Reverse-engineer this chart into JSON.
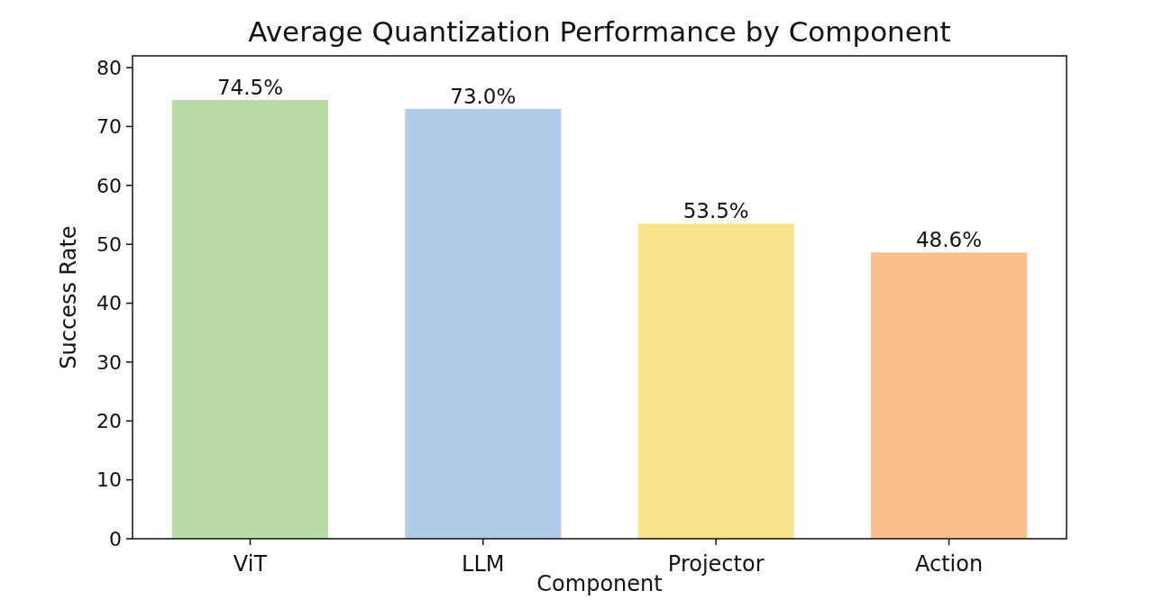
{
  "chart_data": {
    "type": "bar",
    "title": "Average Quantization Performance by Component",
    "xlabel": "Component",
    "ylabel": "Success Rate",
    "categories": [
      "ViT",
      "LLM",
      "Projector",
      "Action"
    ],
    "values": [
      74.5,
      73.0,
      53.5,
      48.6
    ],
    "colors": [
      "#b8dba8",
      "#b0cce8",
      "#f8e48a",
      "#f9c189"
    ],
    "value_labels": [
      "74.5%",
      "73.0%",
      "53.5%",
      "48.6%"
    ],
    "ylim": [
      0,
      82
    ],
    "yticks": [
      0,
      10,
      20,
      30,
      40,
      50,
      60,
      70,
      80
    ]
  }
}
